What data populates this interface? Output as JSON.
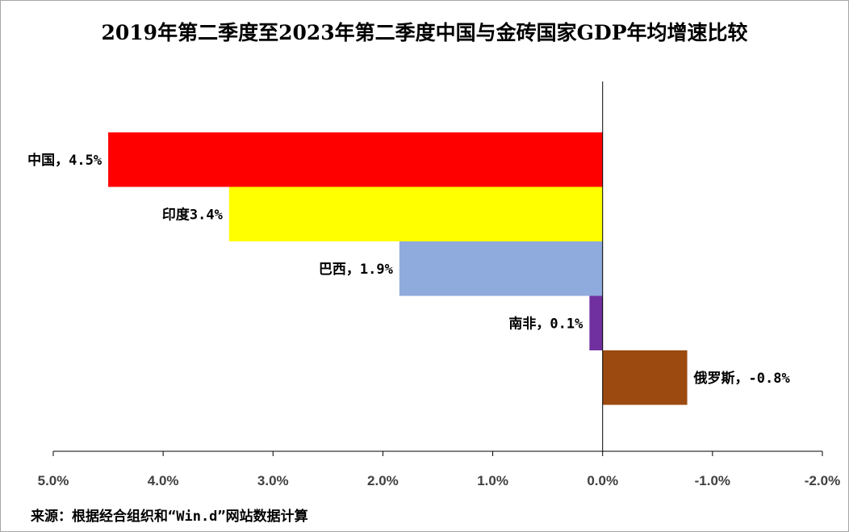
{
  "chart_data": {
    "type": "bar",
    "orientation": "horizontal",
    "title": "2019年第二季度至2023年第二季度中国与金砖国家GDP年均增速比较",
    "categories": [
      "中国",
      "印度",
      "巴西",
      "南非",
      "俄罗斯"
    ],
    "values": [
      4.5,
      3.4,
      1.85,
      0.12,
      -0.77
    ],
    "data_labels": [
      "中国，4.5%",
      "印度3.4%",
      "巴西，1.9%",
      "南非，0.1%",
      "俄罗斯，-0.8%"
    ],
    "colors": [
      "#ff0000",
      "#ffff00",
      "#8faadc",
      "#7030a0",
      "#9c4a10"
    ],
    "x_axis": {
      "reversed": true,
      "range": [
        5.0,
        -2.0
      ],
      "ticks": [
        5.0,
        4.0,
        3.0,
        2.0,
        1.0,
        0.0,
        -1.0,
        -2.0
      ],
      "tick_labels": [
        "5.0%",
        "4.0%",
        "3.0%",
        "2.0%",
        "1.0%",
        "0.0%",
        "-1.0%",
        "-2.0%"
      ]
    },
    "grid": false,
    "legend": "none"
  },
  "source_note": "来源：根据经合组织和“Win.d”网站数据计算"
}
